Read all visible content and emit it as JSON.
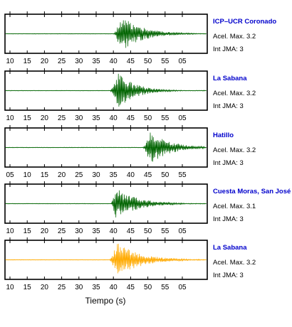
{
  "chart_data": [
    {
      "type": "line",
      "station": "ICP–UCR Coronado",
      "accel_label": "Acel. Max. 3.2",
      "jma_label": "Int JMA: 3",
      "color": "#006400",
      "name_color": "#0000cc",
      "tick_labels": [
        "10",
        "15",
        "20",
        "25",
        "30",
        "35",
        "40",
        "45",
        "50",
        "55",
        "05"
      ],
      "onset_tick": 6.0,
      "peak_tick": 6.45,
      "amplitude": 0.95,
      "decay": 0.55
    },
    {
      "type": "line",
      "station": "La Sabana",
      "accel_label": "Acel. Max. 3.2",
      "jma_label": "Int JMA: 3",
      "color": "#006400",
      "name_color": "#0000cc",
      "tick_labels": [
        "10",
        "15",
        "20",
        "25",
        "30",
        "35",
        "40",
        "45",
        "50",
        "55",
        "05"
      ],
      "onset_tick": 5.8,
      "peak_tick": 6.3,
      "amplitude": 0.95,
      "decay": 0.45
    },
    {
      "type": "line",
      "station": "Hatillo",
      "accel_label": "Acel. Max. 3.2",
      "jma_label": "Int JMA: 3",
      "color": "#006400",
      "name_color": "#0000cc",
      "tick_labels": [
        "05",
        "10",
        "15",
        "20",
        "25",
        "30",
        "35",
        "40",
        "45",
        "50",
        "55"
      ],
      "onset_tick": 7.7,
      "peak_tick": 8.15,
      "amplitude": 0.9,
      "decay": 0.5
    },
    {
      "type": "line",
      "station": "Cuesta Moras, San José",
      "accel_label": "Acel. Max. 3.1",
      "jma_label": "Int JMA: 3",
      "color": "#006400",
      "name_color": "#0000cc",
      "tick_labels": [
        "10",
        "15",
        "20",
        "25",
        "30",
        "35",
        "40",
        "45",
        "50",
        "55",
        "05"
      ],
      "onset_tick": 5.85,
      "peak_tick": 6.15,
      "amplitude": 0.85,
      "decay": 0.55
    },
    {
      "type": "line",
      "station": "La Sabana",
      "accel_label": "Acel. Max. 3.2",
      "jma_label": "Int JMA: 3",
      "color": "#ffaa00",
      "name_color": "#0000cc",
      "tick_labels": [
        "10",
        "15",
        "20",
        "25",
        "30",
        "35",
        "40",
        "45",
        "50",
        "55",
        "05"
      ],
      "onset_tick": 5.75,
      "peak_tick": 6.2,
      "amplitude": 0.95,
      "decay": 0.6
    }
  ],
  "xlabel": "Tiempo (s)"
}
